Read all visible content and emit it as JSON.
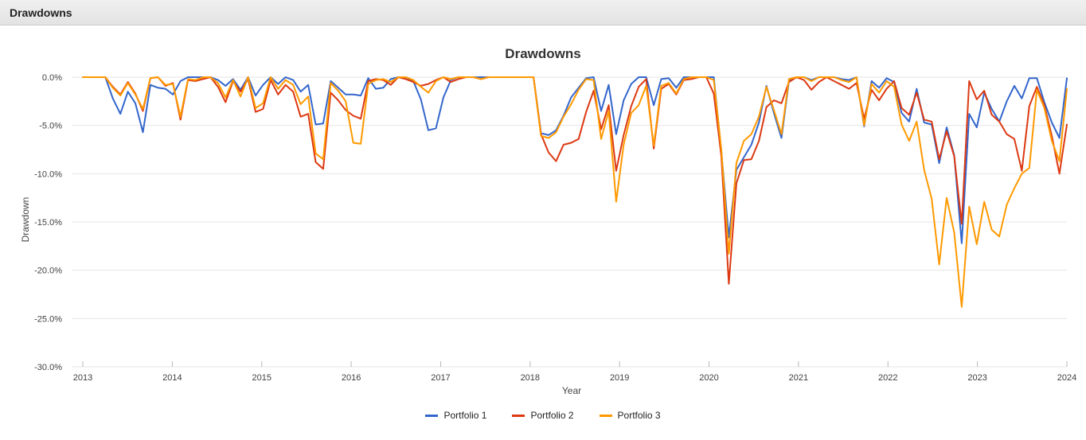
{
  "panel": {
    "title": "Drawdowns"
  },
  "chart_data": {
    "type": "line",
    "title": "Drawdowns",
    "xlabel": "Year",
    "ylabel": "Drawdown",
    "x_unit": "month",
    "x_range": [
      "2013-01",
      "2023-12"
    ],
    "x_tick_labels": [
      "2013",
      "2014",
      "2015",
      "2016",
      "2017",
      "2018",
      "2019",
      "2020",
      "2021",
      "2022",
      "2023",
      "2024"
    ],
    "y_tick_values": [
      0,
      -5,
      -10,
      -15,
      -20,
      -25,
      -30
    ],
    "y_tick_labels": [
      "0.0%",
      "-5.0%",
      "-10.0%",
      "-15.0%",
      "-20.0%",
      "-25.0%",
      "-30.0%"
    ],
    "ylim": [
      -30,
      0
    ],
    "grid": true,
    "legend_position": "bottom",
    "series": [
      {
        "name": "Portfolio 1",
        "color": "#3366CC",
        "values": [
          0,
          0,
          0,
          0,
          -2.2,
          -3.8,
          -1.5,
          -2.7,
          -5.7,
          -0.8,
          -1.1,
          -1.2,
          -1.8,
          -0.4,
          0,
          0,
          0,
          0,
          -0.3,
          -0.9,
          -0.2,
          -1.3,
          0,
          -1.9,
          -0.8,
          0,
          -0.7,
          0,
          -0.3,
          -1.5,
          -0.8,
          -4.9,
          -4.8,
          -0.4,
          -1.1,
          -1.8,
          -1.8,
          -1.9,
          -0.1,
          -1.2,
          -1.1,
          -0.2,
          0,
          0,
          -0.4,
          -2.3,
          -5.5,
          -5.3,
          -2.1,
          -0.3,
          0,
          0,
          0,
          0,
          0,
          0,
          0,
          0,
          0,
          0,
          0,
          -5.8,
          -6.0,
          -5.5,
          -4.0,
          -2.1,
          -1.1,
          -0.1,
          0,
          -3.5,
          -0.8,
          -5.9,
          -2.4,
          -0.7,
          0,
          0,
          -2.9,
          -0.2,
          -0.1,
          -1.1,
          0,
          0,
          0,
          0,
          0,
          -7.7,
          -16.6,
          -9.6,
          -8.3,
          -7.0,
          -4.7,
          -0.9,
          -3.7,
          -6.3,
          -0.4,
          0,
          0,
          -0.3,
          0,
          0,
          0,
          -0.2,
          -0.3,
          0,
          -5.1,
          -0.4,
          -1.1,
          -0.1,
          -0.5,
          -3.7,
          -4.6,
          -1.2,
          -4.7,
          -4.9,
          -8.9,
          -5.2,
          -8.1,
          -17.2,
          -3.8,
          -5.2,
          -1.6,
          -3.3,
          -4.6,
          -2.5,
          -0.9,
          -2.2,
          -0.1,
          -0.1,
          -2.6,
          -4.7,
          -6.3,
          -0.1
        ]
      },
      {
        "name": "Portfolio 2",
        "color": "#DC3912",
        "values": [
          0,
          0,
          0,
          0,
          -1.0,
          -1.8,
          -0.5,
          -1.7,
          -3.5,
          -0.1,
          0,
          -0.9,
          -0.6,
          -4.4,
          -0.3,
          -0.4,
          -0.2,
          0,
          -1.0,
          -2.6,
          -0.4,
          -1.5,
          -0.2,
          -3.6,
          -3.3,
          -0.3,
          -1.8,
          -0.8,
          -1.5,
          -4.1,
          -3.8,
          -8.8,
          -9.5,
          -1.6,
          -2.4,
          -3.4,
          -4.0,
          -4.3,
          -0.4,
          -0.2,
          -0.3,
          -0.8,
          0,
          -0.2,
          -0.5,
          -0.9,
          -0.7,
          -0.3,
          0,
          -0.5,
          -0.2,
          0,
          0,
          -0.2,
          0,
          0,
          0,
          0,
          0,
          0,
          0,
          -5.9,
          -7.8,
          -8.7,
          -7.0,
          -6.8,
          -6.4,
          -3.6,
          -1.4,
          -5.4,
          -2.9,
          -9.7,
          -6.0,
          -3.0,
          -1.0,
          -0.2,
          -7.4,
          -1.2,
          -0.7,
          -1.8,
          -0.3,
          -0.2,
          0,
          0,
          -1.7,
          -8.2,
          -21.4,
          -11.0,
          -8.6,
          -8.5,
          -6.6,
          -3.1,
          -2.4,
          -2.7,
          -0.5,
          0,
          -0.3,
          -1.3,
          -0.5,
          0,
          -0.4,
          -0.8,
          -1.2,
          -0.6,
          -4.3,
          -1.3,
          -2.4,
          -1.2,
          -0.4,
          -3.2,
          -3.9,
          -1.6,
          -4.4,
          -4.6,
          -8.5,
          -5.6,
          -8.2,
          -15.2,
          -0.4,
          -2.3,
          -1.4,
          -3.9,
          -4.6,
          -5.9,
          -6.4,
          -9.7,
          -3.0,
          -1.0,
          -2.9,
          -6.1,
          -10.0,
          -4.9
        ]
      },
      {
        "name": "Portfolio 3",
        "color": "#FF9900",
        "values": [
          0,
          0,
          0,
          0,
          -1.1,
          -1.9,
          -0.6,
          -1.8,
          -3.3,
          -0.1,
          0,
          -0.8,
          -0.7,
          -4.1,
          -0.2,
          -0.3,
          0,
          0,
          -0.6,
          -2.1,
          -0.3,
          -2.0,
          0,
          -3.2,
          -2.7,
          0,
          -1.2,
          -0.3,
          -0.8,
          -2.8,
          -2.0,
          -7.9,
          -8.5,
          -0.6,
          -1.4,
          -2.5,
          -6.8,
          -6.9,
          -0.7,
          -0.3,
          -0.2,
          -0.5,
          0,
          0,
          -0.3,
          -1.0,
          -1.6,
          -0.4,
          0,
          -0.2,
          0,
          0,
          0,
          -0.2,
          0,
          0,
          0,
          0,
          0,
          0,
          0,
          -6.1,
          -6.3,
          -5.7,
          -4.1,
          -2.8,
          -1.3,
          -0.2,
          -0.3,
          -6.4,
          -3.5,
          -12.9,
          -7.0,
          -3.7,
          -2.9,
          -0.9,
          -7.1,
          -0.9,
          -0.6,
          -1.7,
          -0.2,
          0,
          0,
          0,
          -0.3,
          -7.5,
          -18.3,
          -8.9,
          -6.6,
          -5.9,
          -4.1,
          -1.0,
          -3.4,
          -5.9,
          -0.2,
          0,
          0,
          -0.4,
          0,
          0,
          0,
          -0.3,
          -0.5,
          0,
          -5.0,
          -0.7,
          -1.6,
          -0.4,
          -1.0,
          -4.9,
          -6.6,
          -4.6,
          -9.6,
          -12.6,
          -19.4,
          -12.5,
          -16.1,
          -23.8,
          -13.4,
          -17.3,
          -12.9,
          -15.8,
          -16.5,
          -13.2,
          -11.5,
          -10.0,
          -9.4,
          -1.3,
          -3.2,
          -6.6,
          -8.7,
          -1.2
        ]
      }
    ],
    "style": {
      "grid_color": "#e6e6e6",
      "tick_color": "#b7b7b7",
      "tick_label_color": "#404040",
      "line_width": 2
    }
  }
}
